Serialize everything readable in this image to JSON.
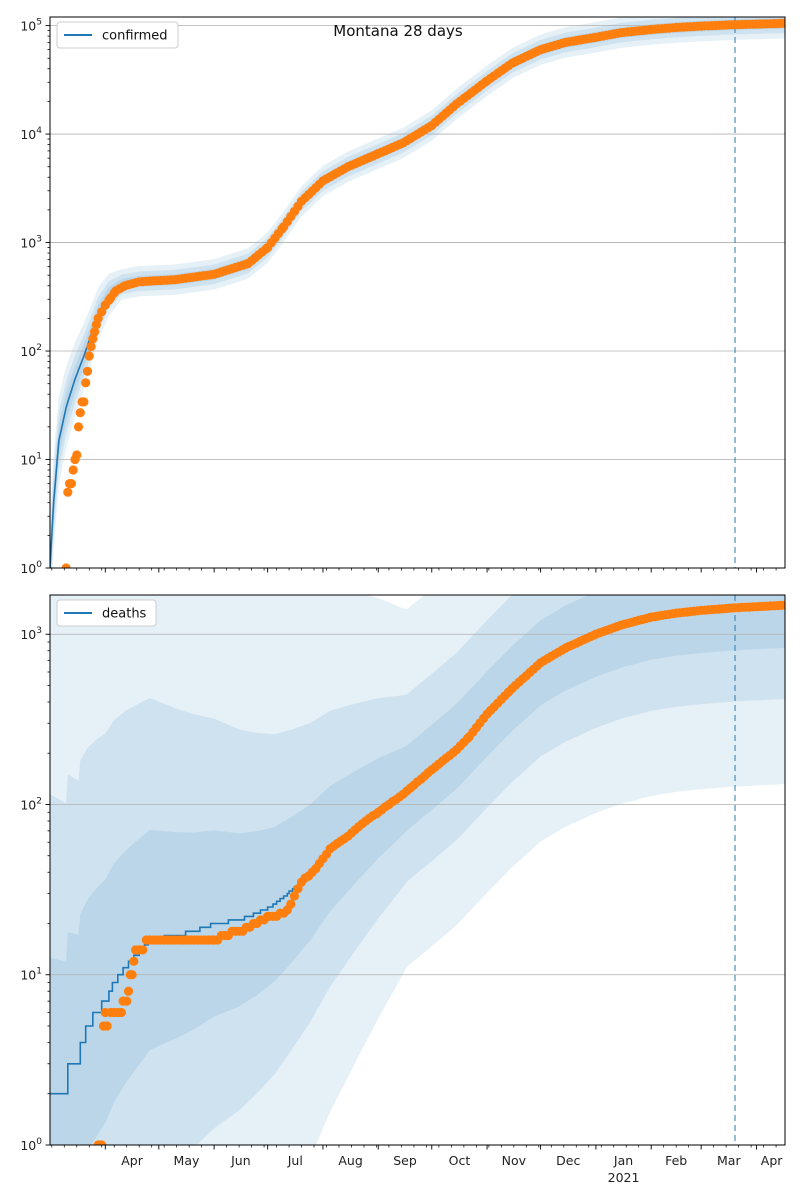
{
  "chart_data": [
    {
      "type": "line",
      "title": "Montana 28 days",
      "legend": {
        "label": "confirmed",
        "placement": "top-left"
      },
      "y_scale": "log",
      "ylim": [
        1,
        120000
      ],
      "y_ticks": [
        {
          "value": 1,
          "base": "10",
          "exp": "0"
        },
        {
          "value": 10,
          "base": "10",
          "exp": "1"
        },
        {
          "value": 100,
          "base": "10",
          "exp": "2"
        },
        {
          "value": 1000,
          "base": "10",
          "exp": "3"
        },
        {
          "value": 10000,
          "base": "10",
          "exp": "4"
        },
        {
          "value": 100000,
          "base": "10",
          "exp": "5"
        }
      ],
      "xlim": [
        "2020-03-01",
        "2021-04-17"
      ],
      "grid": "horizontal",
      "vline_date": "2021-03-20",
      "line_color": "#1f77b4",
      "marker_color": "#ff7f0e",
      "band_color": "#1f77b4",
      "model_anchors": [
        [
          "2020-03-01",
          1
        ],
        [
          "2020-03-03",
          4
        ],
        [
          "2020-03-06",
          15
        ],
        [
          "2020-03-10",
          30
        ],
        [
          "2020-03-15",
          55
        ],
        [
          "2020-03-20",
          90
        ],
        [
          "2020-03-24",
          140
        ],
        [
          "2020-03-28",
          220
        ],
        [
          "2020-04-03",
          330
        ],
        [
          "2020-04-10",
          410
        ],
        [
          "2020-04-20",
          440
        ],
        [
          "2020-05-10",
          455
        ],
        [
          "2020-06-01",
          510
        ],
        [
          "2020-06-20",
          640
        ],
        [
          "2020-07-01",
          900
        ],
        [
          "2020-07-10",
          1400
        ],
        [
          "2020-07-20",
          2400
        ],
        [
          "2020-08-01",
          3700
        ],
        [
          "2020-08-15",
          5000
        ],
        [
          "2020-09-01",
          6600
        ],
        [
          "2020-09-15",
          8300
        ],
        [
          "2020-10-01",
          12000
        ],
        [
          "2020-10-15",
          19000
        ],
        [
          "2020-11-01",
          31000
        ],
        [
          "2020-11-15",
          45000
        ],
        [
          "2020-12-01",
          60000
        ],
        [
          "2020-12-15",
          70000
        ],
        [
          "2021-01-01",
          78000
        ],
        [
          "2021-01-15",
          86000
        ],
        [
          "2021-02-01",
          92000
        ],
        [
          "2021-02-15",
          96000
        ],
        [
          "2021-03-01",
          99000
        ],
        [
          "2021-03-20",
          102000
        ],
        [
          "2021-04-17",
          105000
        ]
      ],
      "band_widths": [
        0.05,
        0.09,
        0.14
      ],
      "observed_anchors": [
        [
          "2020-03-10",
          1
        ],
        [
          "2020-03-11",
          5
        ],
        [
          "2020-03-12",
          6
        ],
        [
          "2020-03-13",
          6
        ],
        [
          "2020-03-14",
          8
        ],
        [
          "2020-03-15",
          10
        ],
        [
          "2020-03-16",
          11
        ],
        [
          "2020-03-17",
          20
        ],
        [
          "2020-03-18",
          27
        ],
        [
          "2020-03-19",
          34
        ],
        [
          "2020-03-20",
          34
        ],
        [
          "2020-03-21",
          51
        ],
        [
          "2020-03-22",
          65
        ],
        [
          "2020-03-23",
          90
        ],
        [
          "2020-03-24",
          110
        ],
        [
          "2020-03-25",
          130
        ],
        [
          "2020-03-26",
          150
        ],
        [
          "2020-03-27",
          175
        ],
        [
          "2020-03-28",
          200
        ],
        [
          "2020-03-30",
          230
        ],
        [
          "2020-04-01",
          265
        ],
        [
          "2020-04-04",
          310
        ],
        [
          "2020-04-07",
          360
        ],
        [
          "2020-04-12",
          400
        ],
        [
          "2020-04-20",
          435
        ],
        [
          "2020-05-10",
          455
        ],
        [
          "2020-06-01",
          510
        ],
        [
          "2020-06-20",
          640
        ],
        [
          "2020-07-01",
          900
        ],
        [
          "2020-07-10",
          1400
        ],
        [
          "2020-07-20",
          2400
        ],
        [
          "2020-08-01",
          3700
        ],
        [
          "2020-08-15",
          5000
        ],
        [
          "2020-09-01",
          6600
        ],
        [
          "2020-09-15",
          8300
        ],
        [
          "2020-10-01",
          12000
        ],
        [
          "2020-10-15",
          19000
        ],
        [
          "2020-11-01",
          31000
        ],
        [
          "2020-11-15",
          45000
        ],
        [
          "2020-12-01",
          60000
        ],
        [
          "2020-12-15",
          70000
        ],
        [
          "2021-01-01",
          78000
        ],
        [
          "2021-01-15",
          86000
        ],
        [
          "2021-02-01",
          92000
        ],
        [
          "2021-02-15",
          96000
        ],
        [
          "2021-03-01",
          99000
        ],
        [
          "2021-03-20",
          102000
        ],
        [
          "2021-04-17",
          105000
        ]
      ],
      "observed_step_days": 2
    },
    {
      "type": "line",
      "title": "",
      "legend": {
        "label": "deaths",
        "placement": "top-left"
      },
      "y_scale": "log",
      "ylim": [
        1,
        1700
      ],
      "y_ticks": [
        {
          "value": 1,
          "base": "10",
          "exp": "0"
        },
        {
          "value": 10,
          "base": "10",
          "exp": "1"
        },
        {
          "value": 100,
          "base": "10",
          "exp": "2"
        },
        {
          "value": 1000,
          "base": "10",
          "exp": "3"
        }
      ],
      "xlim": [
        "2020-03-01",
        "2021-04-17"
      ],
      "x_ticks": [
        {
          "date": "2020-04-01",
          "label": "Apr"
        },
        {
          "date": "2020-05-01",
          "label": "May"
        },
        {
          "date": "2020-06-01",
          "label": "Jun"
        },
        {
          "date": "2020-07-01",
          "label": "Jul"
        },
        {
          "date": "2020-08-01",
          "label": "Aug"
        },
        {
          "date": "2020-09-01",
          "label": "Sep"
        },
        {
          "date": "2020-10-01",
          "label": "Oct"
        },
        {
          "date": "2020-11-01",
          "label": "Nov"
        },
        {
          "date": "2020-12-01",
          "label": "Dec"
        },
        {
          "date": "2021-01-01",
          "label": "Jan",
          "sublabel": "2021"
        },
        {
          "date": "2021-02-01",
          "label": "Feb"
        },
        {
          "date": "2021-03-01",
          "label": "Mar"
        },
        {
          "date": "2021-04-01",
          "label": "Apr"
        }
      ],
      "grid": "horizontal",
      "vline_date": "2021-03-20",
      "line_color": "#1f77b4",
      "marker_color": "#ff7f0e",
      "band_color": "#1f77b4",
      "model_step": true,
      "model_anchors": [
        [
          "2020-03-01",
          2
        ],
        [
          "2020-03-10",
          2
        ],
        [
          "2020-03-11",
          3
        ],
        [
          "2020-03-17",
          3
        ],
        [
          "2020-03-18",
          4
        ],
        [
          "2020-03-22",
          5
        ],
        [
          "2020-03-27",
          6
        ],
        [
          "2020-04-01",
          7
        ],
        [
          "2020-04-06",
          9
        ],
        [
          "2020-04-12",
          11
        ],
        [
          "2020-04-18",
          13
        ],
        [
          "2020-04-26",
          16
        ],
        [
          "2020-05-10",
          17
        ],
        [
          "2020-05-20",
          18
        ],
        [
          "2020-06-01",
          20
        ],
        [
          "2020-06-15",
          21
        ],
        [
          "2020-06-25",
          23
        ],
        [
          "2020-07-05",
          26
        ],
        [
          "2020-07-15",
          32
        ],
        [
          "2020-07-25",
          40
        ],
        [
          "2020-08-05",
          55
        ],
        [
          "2020-08-20",
          75
        ],
        [
          "2020-09-01",
          95
        ],
        [
          "2020-09-15",
          120
        ],
        [
          "2020-10-01",
          165
        ],
        [
          "2020-10-15",
          220
        ],
        [
          "2020-11-01",
          340
        ],
        [
          "2020-11-15",
          480
        ],
        [
          "2020-12-01",
          680
        ],
        [
          "2020-12-15",
          830
        ],
        [
          "2021-01-01",
          1000
        ],
        [
          "2021-01-15",
          1130
        ],
        [
          "2021-02-01",
          1260
        ],
        [
          "2021-02-15",
          1330
        ],
        [
          "2021-03-01",
          1380
        ],
        [
          "2021-03-20",
          1430
        ],
        [
          "2021-04-17",
          1480
        ]
      ],
      "band_widths": [
        0.25,
        0.55,
        1.05
      ],
      "observed_anchors": [
        [
          "2020-03-28",
          1
        ],
        [
          "2020-03-29",
          1
        ],
        [
          "2020-03-30",
          1
        ],
        [
          "2020-03-31",
          5
        ],
        [
          "2020-04-01",
          6
        ],
        [
          "2020-04-02",
          5
        ],
        [
          "2020-04-04",
          6
        ],
        [
          "2020-04-10",
          6
        ],
        [
          "2020-04-11",
          7
        ],
        [
          "2020-04-13",
          7
        ],
        [
          "2020-04-14",
          8
        ],
        [
          "2020-04-15",
          10
        ],
        [
          "2020-04-16",
          10
        ],
        [
          "2020-04-17",
          12
        ],
        [
          "2020-04-18",
          14
        ],
        [
          "2020-04-22",
          14
        ],
        [
          "2020-04-24",
          16
        ],
        [
          "2020-05-15",
          16
        ],
        [
          "2020-06-01",
          16
        ],
        [
          "2020-06-05",
          17
        ],
        [
          "2020-06-15",
          18
        ],
        [
          "2020-06-25",
          20
        ],
        [
          "2020-07-02",
          22
        ],
        [
          "2020-07-10",
          23
        ],
        [
          "2020-07-14",
          26
        ],
        [
          "2020-07-20",
          35
        ],
        [
          "2020-07-28",
          42
        ],
        [
          "2020-08-05",
          55
        ],
        [
          "2020-08-15",
          65
        ],
        [
          "2020-08-25",
          80
        ],
        [
          "2020-09-01",
          90
        ],
        [
          "2020-09-15",
          115
        ],
        [
          "2020-10-01",
          160
        ],
        [
          "2020-10-15",
          210
        ],
        [
          "2020-10-22",
          250
        ],
        [
          "2020-11-01",
          340
        ],
        [
          "2020-11-15",
          480
        ],
        [
          "2020-12-01",
          680
        ],
        [
          "2020-12-15",
          830
        ],
        [
          "2021-01-01",
          1000
        ],
        [
          "2021-01-15",
          1130
        ],
        [
          "2021-02-01",
          1260
        ],
        [
          "2021-02-15",
          1330
        ],
        [
          "2021-03-01",
          1380
        ],
        [
          "2021-03-20",
          1430
        ],
        [
          "2021-04-17",
          1480
        ]
      ],
      "observed_step_days": 2
    }
  ]
}
